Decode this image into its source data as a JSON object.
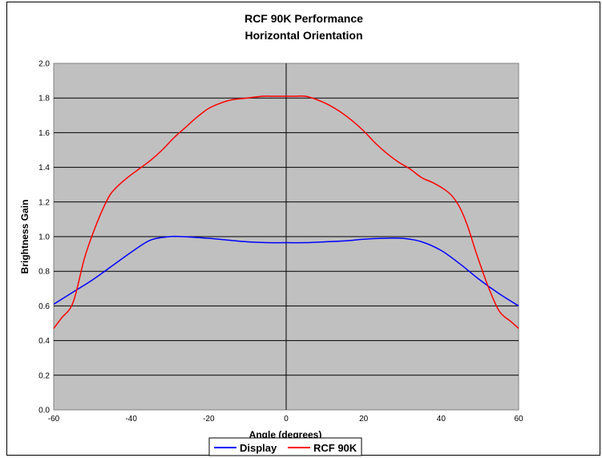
{
  "chart_data": {
    "type": "line",
    "title": [
      "RCF 90K Performance",
      "Horizontal Orientation"
    ],
    "xlabel": "Angle (degrees)",
    "ylabel": "Brightness Gain",
    "xlim": [
      -60,
      60
    ],
    "ylim": [
      0.0,
      2.0
    ],
    "xticks": [
      -60,
      -40,
      -20,
      0,
      20,
      40,
      60
    ],
    "yticks": [
      0.0,
      0.2,
      0.4,
      0.6,
      0.8,
      1.0,
      1.2,
      1.4,
      1.6,
      1.8,
      2.0
    ],
    "ytick_labels": [
      "0.0",
      "0.2",
      "0.4",
      "0.6",
      "0.8",
      "1.0",
      "1.2",
      "1.4",
      "1.6",
      "1.8",
      "2.0"
    ],
    "grid": "horizontal",
    "plot_background": "#c0c0c0",
    "legend_position": "bottom",
    "series": [
      {
        "name": "Display",
        "color": "#0000ff",
        "x": [
          -60,
          -55,
          -50,
          -45,
          -40,
          -35,
          -30,
          -27,
          -20,
          -15,
          -10,
          -5,
          0,
          5,
          10,
          15,
          20,
          25,
          30,
          35,
          40,
          45,
          50,
          55,
          60
        ],
        "y": [
          0.61,
          0.68,
          0.75,
          0.83,
          0.91,
          0.98,
          1.0,
          1.0,
          0.99,
          0.98,
          0.97,
          0.965,
          0.965,
          0.965,
          0.97,
          0.975,
          0.985,
          0.99,
          0.99,
          0.97,
          0.92,
          0.84,
          0.75,
          0.67,
          0.6
        ]
      },
      {
        "name": "RCF 90K",
        "color": "#ff0000",
        "x": [
          -60,
          -58,
          -55,
          -52,
          -49,
          -46,
          -44,
          -41,
          -38,
          -35,
          -32,
          -29,
          -26,
          -23,
          -20,
          -17,
          -14,
          -10,
          -6,
          -3,
          0,
          2,
          5,
          8,
          11,
          14,
          17,
          20,
          23,
          26,
          29,
          32,
          35,
          38,
          41,
          43,
          45,
          47,
          49,
          52,
          55,
          58,
          60
        ],
        "y": [
          0.47,
          0.53,
          0.62,
          0.88,
          1.07,
          1.22,
          1.28,
          1.34,
          1.39,
          1.44,
          1.5,
          1.57,
          1.63,
          1.69,
          1.74,
          1.77,
          1.79,
          1.8,
          1.81,
          1.81,
          1.81,
          1.81,
          1.81,
          1.79,
          1.76,
          1.72,
          1.67,
          1.61,
          1.54,
          1.48,
          1.43,
          1.39,
          1.34,
          1.31,
          1.27,
          1.23,
          1.16,
          1.05,
          0.91,
          0.72,
          0.57,
          0.51,
          0.47
        ]
      }
    ]
  }
}
